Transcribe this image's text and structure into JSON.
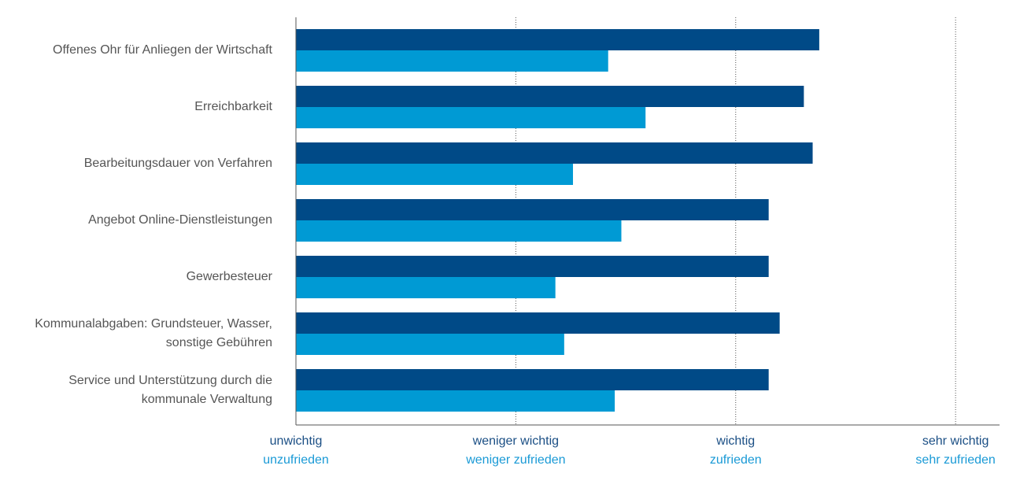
{
  "chart_data": {
    "type": "hbar",
    "categories": [
      "Offenes Ohr für Anliegen der Wirtschaft",
      "Erreichbarkeit",
      "Bearbeitungsdauer von Verfahren",
      "Angebot Online-Dienstleistungen",
      "Gewerbesteuer",
      "Kommunalabgaben: Grundsteuer, Wasser, sonstige Gebühren",
      "Service und Unterstützung durch die kommunale Verwaltung"
    ],
    "series": [
      {
        "color": "#004a87",
        "values": [
          3.38,
          3.31,
          3.35,
          3.15,
          3.15,
          3.2,
          3.15
        ]
      },
      {
        "color": "#009ad4",
        "axis": "x2",
        "values": [
          2.42,
          2.59,
          2.26,
          2.48,
          2.18,
          2.22,
          2.45
        ]
      }
    ],
    "xlim": [
      1,
      4.2
    ],
    "xticks": [
      {
        "value": 1,
        "label": "unwichtig"
      },
      {
        "value": 2,
        "label": "weniger wichtig"
      },
      {
        "value": 3,
        "label": "wichtig"
      },
      {
        "value": 4,
        "label": "sehr wichtig"
      }
    ],
    "x2lim": [
      1,
      4.2
    ],
    "x2ticks": [
      {
        "value": 1,
        "label": "unzufrieden"
      },
      {
        "value": 2,
        "label": "weniger zufrieden"
      },
      {
        "value": 3,
        "label": "zufrieden"
      },
      {
        "value": 4,
        "label": "sehr zufrieden"
      }
    ],
    "grid": true
  }
}
